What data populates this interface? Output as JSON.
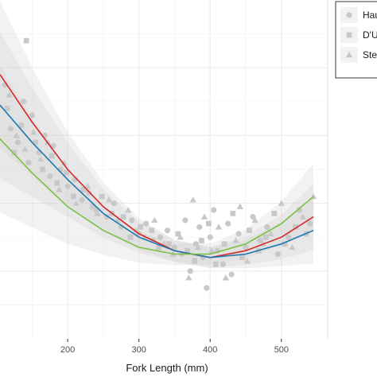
{
  "chart_data": {
    "type": "scatter",
    "title": "",
    "xlabel": "Fork Length (mm)",
    "ylabel": "",
    "xlim": [
      105,
      565
    ],
    "ylim": [
      0,
      1
    ],
    "x_ticks": [
      200,
      300,
      400,
      500
    ],
    "y_ticks": [],
    "grid": true,
    "legend_position": "top-right",
    "series": [
      {
        "name": "Hau",
        "marker": "circle",
        "points": [
          [
            112,
            0.75
          ],
          [
            120,
            0.62
          ],
          [
            130,
            0.58
          ],
          [
            138,
            0.7
          ],
          [
            145,
            0.52
          ],
          [
            150,
            0.66
          ],
          [
            160,
            0.55
          ],
          [
            168,
            0.6
          ],
          [
            175,
            0.48
          ],
          [
            180,
            0.57
          ],
          [
            190,
            0.5
          ],
          [
            200,
            0.45
          ],
          [
            210,
            0.47
          ],
          [
            220,
            0.41
          ],
          [
            230,
            0.43
          ],
          [
            240,
            0.38
          ],
          [
            255,
            0.36
          ],
          [
            265,
            0.4
          ],
          [
            275,
            0.33
          ],
          [
            290,
            0.35
          ],
          [
            300,
            0.31
          ],
          [
            310,
            0.34
          ],
          [
            320,
            0.29
          ],
          [
            330,
            0.3
          ],
          [
            340,
            0.32
          ],
          [
            350,
            0.27
          ],
          [
            360,
            0.25
          ],
          [
            365,
            0.35
          ],
          [
            372,
            0.2
          ],
          [
            380,
            0.28
          ],
          [
            385,
            0.33
          ],
          [
            390,
            0.24
          ],
          [
            395,
            0.15
          ],
          [
            400,
            0.3
          ],
          [
            405,
            0.38
          ],
          [
            410,
            0.26
          ],
          [
            418,
            0.22
          ],
          [
            425,
            0.34
          ],
          [
            430,
            0.19
          ],
          [
            440,
            0.31
          ],
          [
            450,
            0.27
          ],
          [
            460,
            0.36
          ],
          [
            470,
            0.29
          ],
          [
            480,
            0.33
          ],
          [
            495,
            0.25
          ],
          [
            510,
            0.3
          ],
          [
            525,
            0.38
          ],
          [
            540,
            0.34
          ]
        ]
      },
      {
        "name": "D'U",
        "marker": "square",
        "points": [
          [
            115,
            0.68
          ],
          [
            125,
            0.55
          ],
          [
            135,
            0.63
          ],
          [
            142,
            0.88
          ],
          [
            155,
            0.58
          ],
          [
            165,
            0.5
          ],
          [
            178,
            0.54
          ],
          [
            185,
            0.46
          ],
          [
            198,
            0.49
          ],
          [
            208,
            0.42
          ],
          [
            222,
            0.44
          ],
          [
            235,
            0.39
          ],
          [
            248,
            0.42
          ],
          [
            262,
            0.37
          ],
          [
            278,
            0.36
          ],
          [
            288,
            0.3
          ],
          [
            302,
            0.33
          ],
          [
            318,
            0.32
          ],
          [
            328,
            0.27
          ],
          [
            342,
            0.28
          ],
          [
            355,
            0.31
          ],
          [
            368,
            0.26
          ],
          [
            378,
            0.23
          ],
          [
            388,
            0.29
          ],
          [
            398,
            0.34
          ],
          [
            408,
            0.22
          ],
          [
            420,
            0.28
          ],
          [
            432,
            0.37
          ],
          [
            445,
            0.24
          ],
          [
            455,
            0.32
          ],
          [
            468,
            0.26
          ],
          [
            478,
            0.3
          ],
          [
            490,
            0.37
          ],
          [
            505,
            0.28
          ],
          [
            520,
            0.33
          ],
          [
            535,
            0.31
          ]
        ]
      },
      {
        "name": "Ste",
        "marker": "triangle",
        "points": [
          [
            118,
            0.72
          ],
          [
            128,
            0.6
          ],
          [
            140,
            0.56
          ],
          [
            152,
            0.61
          ],
          [
            162,
            0.53
          ],
          [
            172,
            0.58
          ],
          [
            188,
            0.44
          ],
          [
            195,
            0.52
          ],
          [
            212,
            0.4
          ],
          [
            228,
            0.45
          ],
          [
            242,
            0.37
          ],
          [
            258,
            0.41
          ],
          [
            270,
            0.35
          ],
          [
            285,
            0.38
          ],
          [
            296,
            0.32
          ],
          [
            308,
            0.3
          ],
          [
            322,
            0.35
          ],
          [
            335,
            0.28
          ],
          [
            348,
            0.25
          ],
          [
            358,
            0.3
          ],
          [
            370,
            0.18
          ],
          [
            376,
            0.41
          ],
          [
            383,
            0.27
          ],
          [
            392,
            0.36
          ],
          [
            402,
            0.26
          ],
          [
            412,
            0.33
          ],
          [
            422,
            0.18
          ],
          [
            436,
            0.29
          ],
          [
            442,
            0.39
          ],
          [
            452,
            0.23
          ],
          [
            463,
            0.35
          ],
          [
            474,
            0.28
          ],
          [
            485,
            0.31
          ],
          [
            500,
            0.4
          ],
          [
            515,
            0.27
          ],
          [
            530,
            0.36
          ],
          [
            545,
            0.42
          ]
        ]
      }
    ],
    "fits": [
      {
        "color": "#d62728",
        "points": [
          [
            105,
            0.78
          ],
          [
            150,
            0.64
          ],
          [
            200,
            0.5
          ],
          [
            250,
            0.39
          ],
          [
            300,
            0.31
          ],
          [
            350,
            0.26
          ],
          [
            400,
            0.24
          ],
          [
            450,
            0.26
          ],
          [
            500,
            0.3
          ],
          [
            545,
            0.36
          ]
        ]
      },
      {
        "color": "#1f77b4",
        "points": [
          [
            105,
            0.69
          ],
          [
            150,
            0.58
          ],
          [
            200,
            0.47
          ],
          [
            250,
            0.37
          ],
          [
            300,
            0.3
          ],
          [
            350,
            0.26
          ],
          [
            400,
            0.24
          ],
          [
            450,
            0.25
          ],
          [
            500,
            0.28
          ],
          [
            545,
            0.32
          ]
        ]
      },
      {
        "color": "#7ac142",
        "points": [
          [
            105,
            0.59
          ],
          [
            150,
            0.49
          ],
          [
            200,
            0.39
          ],
          [
            250,
            0.32
          ],
          [
            300,
            0.27
          ],
          [
            350,
            0.25
          ],
          [
            400,
            0.25
          ],
          [
            450,
            0.28
          ],
          [
            500,
            0.34
          ],
          [
            545,
            0.42
          ]
        ]
      }
    ]
  }
}
